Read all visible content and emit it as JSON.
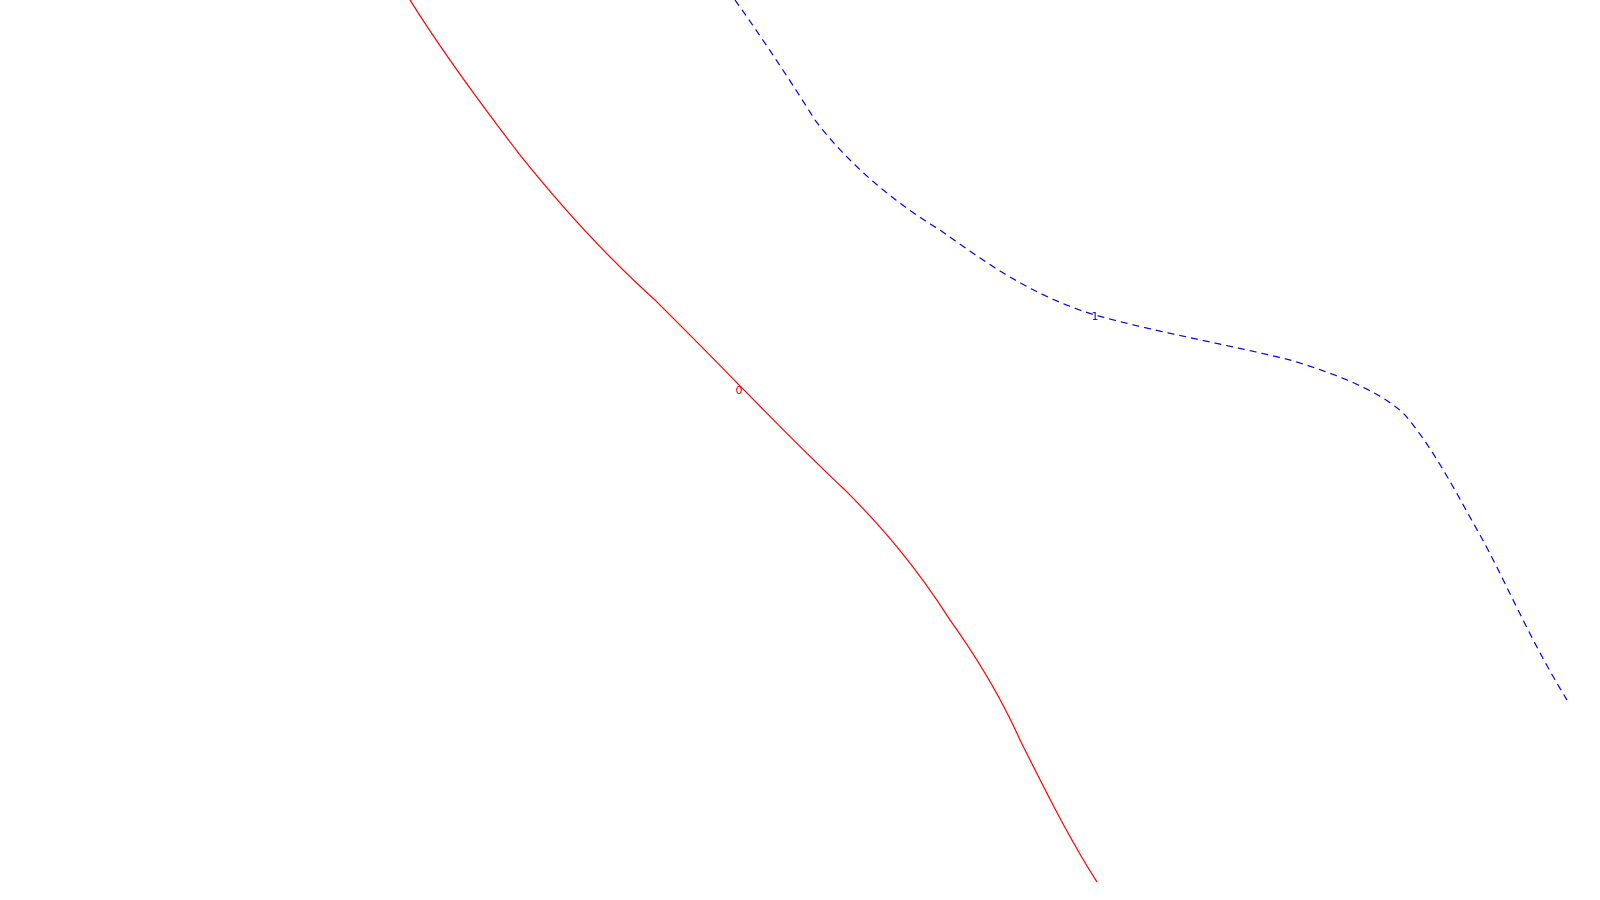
{
  "curves": [
    {
      "label": "0",
      "color": "#ff0000",
      "style": "solid"
    },
    {
      "label": "1",
      "color": "#0000ff",
      "style": "dashed"
    }
  ]
}
